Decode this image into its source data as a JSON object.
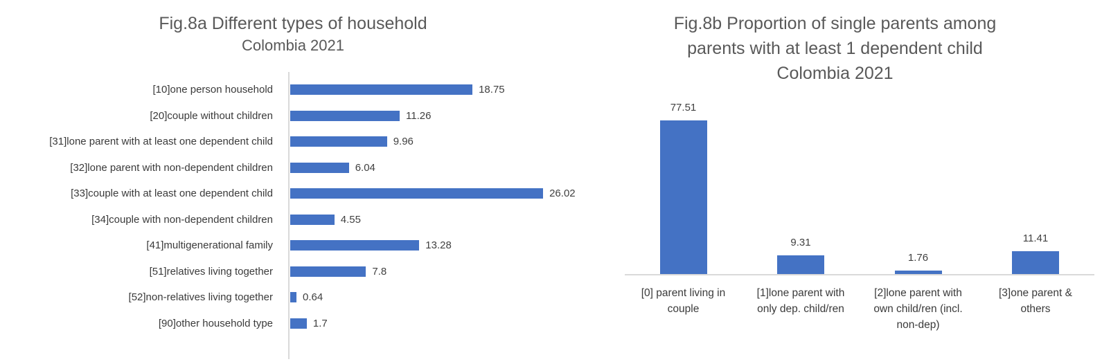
{
  "figure": {
    "background": "#FFFFFF",
    "bar_color": "#4472C4",
    "axis_line_color": "#D9D9D9",
    "title_color": "#595959",
    "category_label_color": "#3A3A3A",
    "value_label_color": "#404040"
  },
  "chart_data": [
    {
      "id": "fig8a",
      "type": "bar",
      "orientation": "horizontal",
      "title": "Fig.8a Different types of household",
      "subtitle": "Colombia 2021",
      "categories": [
        "[10]one person household",
        "[20]couple without children",
        "[31]lone parent with at least one dependent child",
        "[32]lone parent with non-dependent children",
        "[33]couple with at least one dependent child",
        "[34]couple with non-dependent children",
        "[41]multigenerational family",
        "[51]relatives living together",
        "[52]non-relatives living together",
        "[90]other household type"
      ],
      "values": [
        18.75,
        11.26,
        9.96,
        6.04,
        26.02,
        4.55,
        13.28,
        7.8,
        0.64,
        1.7
      ],
      "value_labels": [
        "18.75",
        "11.26",
        "9.96",
        "6.04",
        "26.02",
        "4.55",
        "13.28",
        "7.8",
        "0.64",
        "1.7"
      ],
      "xlim": [
        0,
        27
      ],
      "grid": false,
      "legend": false,
      "data_labels_position": "outside-end"
    },
    {
      "id": "fig8b",
      "type": "bar",
      "orientation": "vertical",
      "title_lines": [
        "Fig.8b Proportion of single parents among",
        "parents with at least 1 dependent child",
        "Colombia 2021"
      ],
      "categories": [
        "[0] parent living in couple",
        "[1]lone parent with only dep. child/ren",
        "[2]lone parent with own child/ren (incl. non-dep)",
        "[3]one parent & others"
      ],
      "category_lines": [
        [
          "[0] parent living in",
          "couple"
        ],
        [
          "[1]lone parent with",
          "only dep. child/ren"
        ],
        [
          "[2]lone parent with",
          "own child/ren (incl.",
          "non-dep)"
        ],
        [
          "[3]one parent &",
          "others"
        ]
      ],
      "values": [
        77.51,
        9.31,
        1.76,
        11.41
      ],
      "value_labels": [
        "77.51",
        "9.31",
        "1.76",
        "11.41"
      ],
      "ylim": [
        0,
        85
      ],
      "grid": false,
      "legend": false,
      "data_labels_position": "outside-end"
    }
  ]
}
